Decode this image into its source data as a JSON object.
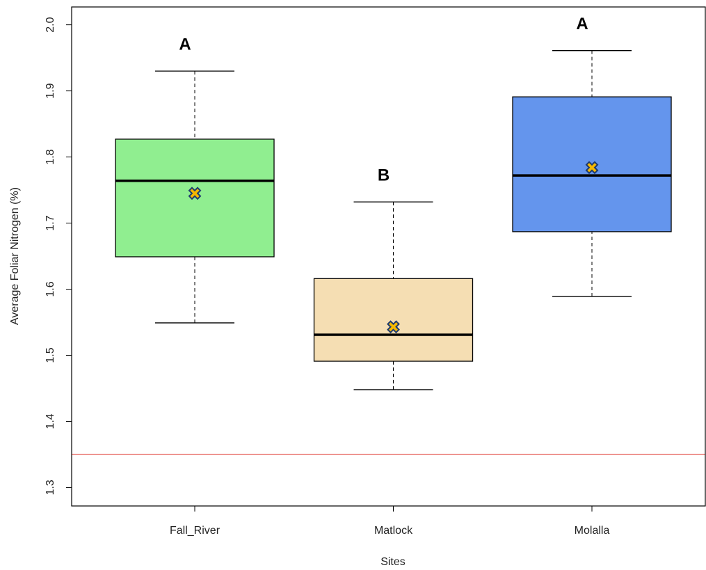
{
  "chart_data": {
    "type": "box",
    "x_label": "Sites",
    "y_label": "Average Foliar Nitrogen (%)",
    "categories": [
      "Fall_River",
      "Matlock",
      "Molalla"
    ],
    "boxes": [
      {
        "whisker_low": 1.549,
        "q1": 1.649,
        "median": 1.764,
        "q3": 1.827,
        "whisker_high": 1.93,
        "mean": 1.745,
        "color": "#90ee90",
        "letter": "A"
      },
      {
        "whisker_low": 1.448,
        "q1": 1.491,
        "median": 1.531,
        "q3": 1.616,
        "whisker_high": 1.732,
        "mean": 1.543,
        "color": "#f5deb3",
        "letter": "B"
      },
      {
        "whisker_low": 1.589,
        "q1": 1.687,
        "median": 1.772,
        "q3": 1.891,
        "whisker_high": 1.961,
        "mean": 1.784,
        "color": "#6495ed",
        "letter": "A"
      }
    ],
    "mean_color": "#f5b800",
    "reference_line": {
      "value": 1.35,
      "color": "#e8716b"
    },
    "ylim": [
      1.272,
      2.027
    ],
    "yticks": [
      1.3,
      1.4,
      1.5,
      1.6,
      1.7,
      1.8,
      1.9,
      {
        "value": 2.0,
        "label": "2.0"
      }
    ]
  }
}
